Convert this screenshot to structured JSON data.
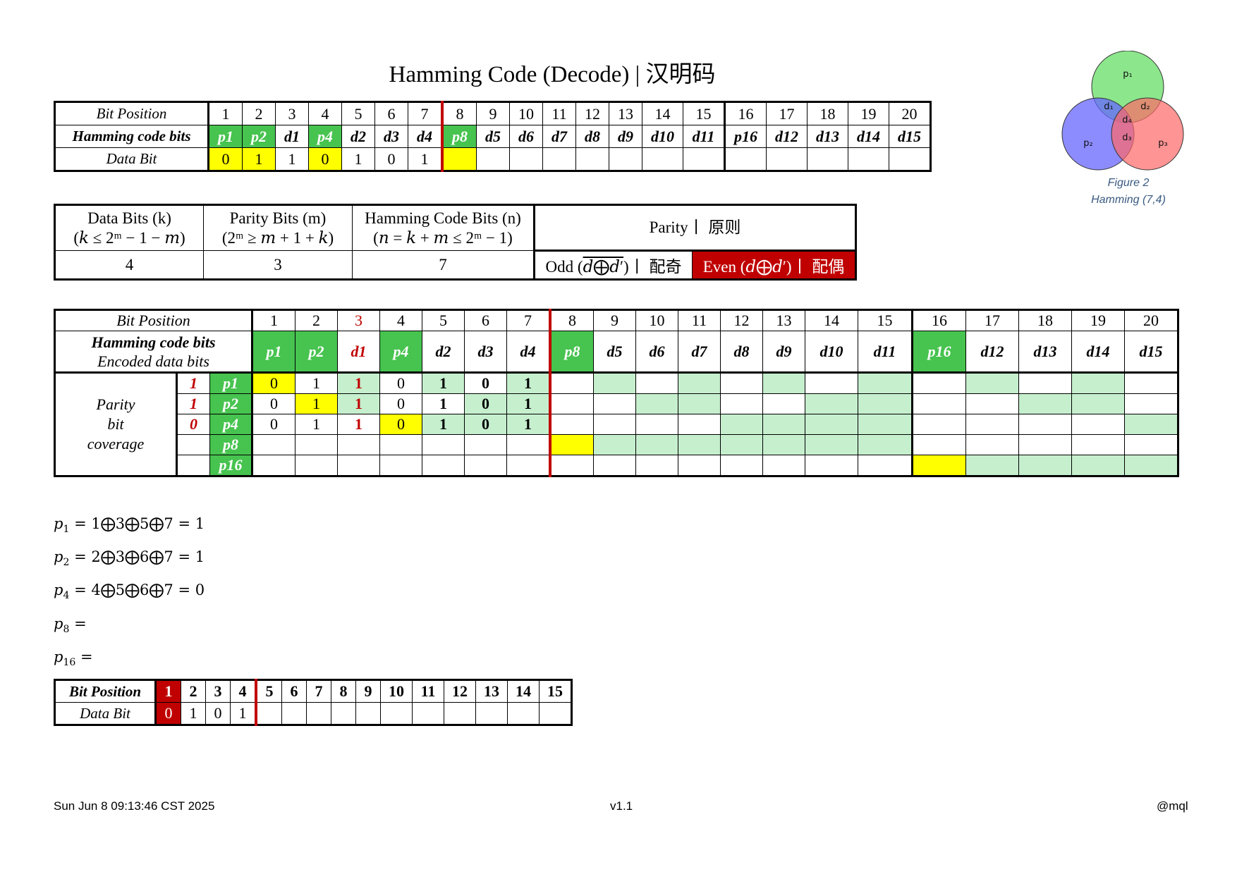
{
  "title": "Hamming Code (Decode) | 汉明码",
  "figure": {
    "labels": {
      "p1": "p₁",
      "p2": "p₂",
      "p3": "p₃",
      "d1": "d₁",
      "d2": "d₂",
      "d3": "d₃",
      "d4": "d₄"
    },
    "caption_line1": "Figure 2",
    "caption_line2": "Hamming (7,4)",
    "colors": {
      "p1": "#66dd66",
      "p2": "#6666ff",
      "p3": "#ff6666"
    }
  },
  "top_table": {
    "label_position": "Bit Position",
    "label_code": "Hamming code bits",
    "label_data": "Data Bit",
    "positions": [
      "1",
      "2",
      "3",
      "4",
      "5",
      "6",
      "7",
      "8",
      "9",
      "10",
      "11",
      "12",
      "13",
      "14",
      "15",
      "16",
      "17",
      "18",
      "19",
      "20"
    ],
    "code_bits": [
      "p1",
      "p2",
      "d1",
      "p4",
      "d2",
      "d3",
      "d4",
      "p8",
      "d5",
      "d6",
      "d7",
      "d8",
      "d9",
      "d10",
      "d11",
      "p16",
      "d12",
      "d13",
      "d14",
      "d15"
    ],
    "data_bits": [
      "0",
      "1",
      "1",
      "0",
      "1",
      "0",
      "1",
      "",
      "",
      "",
      "",
      "",
      "",
      "",
      "",
      "",
      "",
      "",
      "",
      ""
    ]
  },
  "params": {
    "h_data": "Data Bits (k)",
    "h_data_f": "(𝑘 ≤ 2ᵐ − 1 − 𝑚)",
    "h_parity": "Parity Bits (m)",
    "h_parity_f": "(2ᵐ ≥ 𝑚 + 1 + 𝑘)",
    "h_code": "Hamming Code Bits (n)",
    "h_code_f": "(𝑛 = 𝑘 + 𝑚 ≤ 2ᵐ − 1)",
    "h_rule": "Parity丨 原则",
    "v_data": "4",
    "v_parity": "3",
    "v_code": "7",
    "odd_a": "Odd (",
    "odd_b": "𝑑⨁𝑑′",
    "odd_c": ")丨 配奇",
    "even": "Even (𝑑⨁𝑑′)丨 配偶"
  },
  "coverage": {
    "label_position": "Bit Position",
    "label_code": "Hamming code bits",
    "label_encoded": "Encoded data bits",
    "side_l1": "Parity",
    "side_l2": "bit",
    "side_l3": "coverage",
    "positions": [
      "1",
      "2",
      "3",
      "4",
      "5",
      "6",
      "7",
      "8",
      "9",
      "10",
      "11",
      "12",
      "13",
      "14",
      "15",
      "16",
      "17",
      "18",
      "19",
      "20"
    ],
    "code_bits": [
      "p1",
      "p2",
      "d1",
      "p4",
      "d2",
      "d3",
      "d4",
      "p8",
      "d5",
      "d6",
      "d7",
      "d8",
      "d9",
      "d10",
      "d11",
      "p16",
      "d12",
      "d13",
      "d14",
      "d15"
    ],
    "rows": [
      {
        "result": "1",
        "name": "p1",
        "cells": [
          "0",
          "1",
          "1",
          "0",
          "1",
          "0",
          "1",
          "",
          "",
          "",
          "",
          "",
          "",
          "",
          "",
          "",
          "",
          "",
          "",
          ""
        ]
      },
      {
        "result": "1",
        "name": "p2",
        "cells": [
          "0",
          "1",
          "1",
          "0",
          "1",
          "0",
          "1",
          "",
          "",
          "",
          "",
          "",
          "",
          "",
          "",
          "",
          "",
          "",
          "",
          ""
        ]
      },
      {
        "result": "0",
        "name": "p4",
        "cells": [
          "0",
          "1",
          "1",
          "0",
          "1",
          "0",
          "1",
          "",
          "",
          "",
          "",
          "",
          "",
          "",
          "",
          "",
          "",
          "",
          "",
          ""
        ]
      },
      {
        "result": "",
        "name": "p8",
        "cells": [
          "",
          "",
          "",
          "",
          "",
          "",
          "",
          "",
          "",
          "",
          "",
          "",
          "",
          "",
          "",
          "",
          "",
          "",
          "",
          ""
        ]
      },
      {
        "result": "",
        "name": "p16",
        "cells": [
          "",
          "",
          "",
          "",
          "",
          "",
          "",
          "",
          "",
          "",
          "",
          "",
          "",
          "",
          "",
          "",
          "",
          "",
          "",
          ""
        ]
      }
    ]
  },
  "formulas": {
    "p1": "= 1⨁3⨁5⨁7 = 1",
    "p2": "= 2⨁3⨁6⨁7 = 1",
    "p4": "= 4⨁5⨁6⨁7 = 0",
    "p8": "=",
    "p16": "="
  },
  "bottom_table": {
    "label_position": "Bit Position",
    "label_data": "Data Bit",
    "positions": [
      "1",
      "2",
      "3",
      "4",
      "5",
      "6",
      "7",
      "8",
      "9",
      "10",
      "11",
      "12",
      "13",
      "14",
      "15"
    ],
    "data_bits": [
      "0",
      "1",
      "0",
      "1",
      "",
      "",
      "",
      "",
      "",
      "",
      "",
      "",
      "",
      "",
      ""
    ]
  },
  "footer": {
    "date": "Sun Jun  8 09:13:46 CST 2025",
    "version": "v1.1",
    "author": "@mql"
  }
}
